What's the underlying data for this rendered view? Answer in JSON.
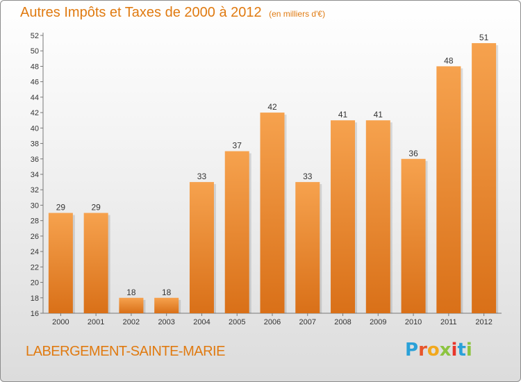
{
  "header": {
    "title": "Autres Impôts et Taxes de 2000 à 2012",
    "subtitle": "(en milliers d'€)"
  },
  "footer": {
    "commune": "LABERGEMENT-SAINTE-MARIE",
    "logo_letters": [
      "P",
      "r",
      "o",
      "x",
      "i",
      "t",
      "i"
    ],
    "logo_colors": [
      "#2aa1d8",
      "#e8552a",
      "#f2a81d",
      "#8cc43f",
      "#e8352a",
      "#2aa1d8",
      "#8cc43f"
    ]
  },
  "colors": {
    "bar_light": "#f6a24e",
    "bar_dark": "#d97018",
    "accent": "#e07a10"
  },
  "chart_data": {
    "type": "bar",
    "categories": [
      "2000",
      "2001",
      "2002",
      "2003",
      "2004",
      "2005",
      "2006",
      "2007",
      "2008",
      "2009",
      "2010",
      "2011",
      "2012"
    ],
    "values": [
      29,
      29,
      18,
      18,
      33,
      37,
      42,
      33,
      41,
      41,
      36,
      48,
      51
    ],
    "ylim": [
      16,
      52
    ],
    "yticks": [
      16,
      18,
      20,
      22,
      24,
      26,
      28,
      30,
      32,
      34,
      36,
      38,
      40,
      42,
      44,
      46,
      48,
      50,
      52
    ],
    "grid": false
  }
}
